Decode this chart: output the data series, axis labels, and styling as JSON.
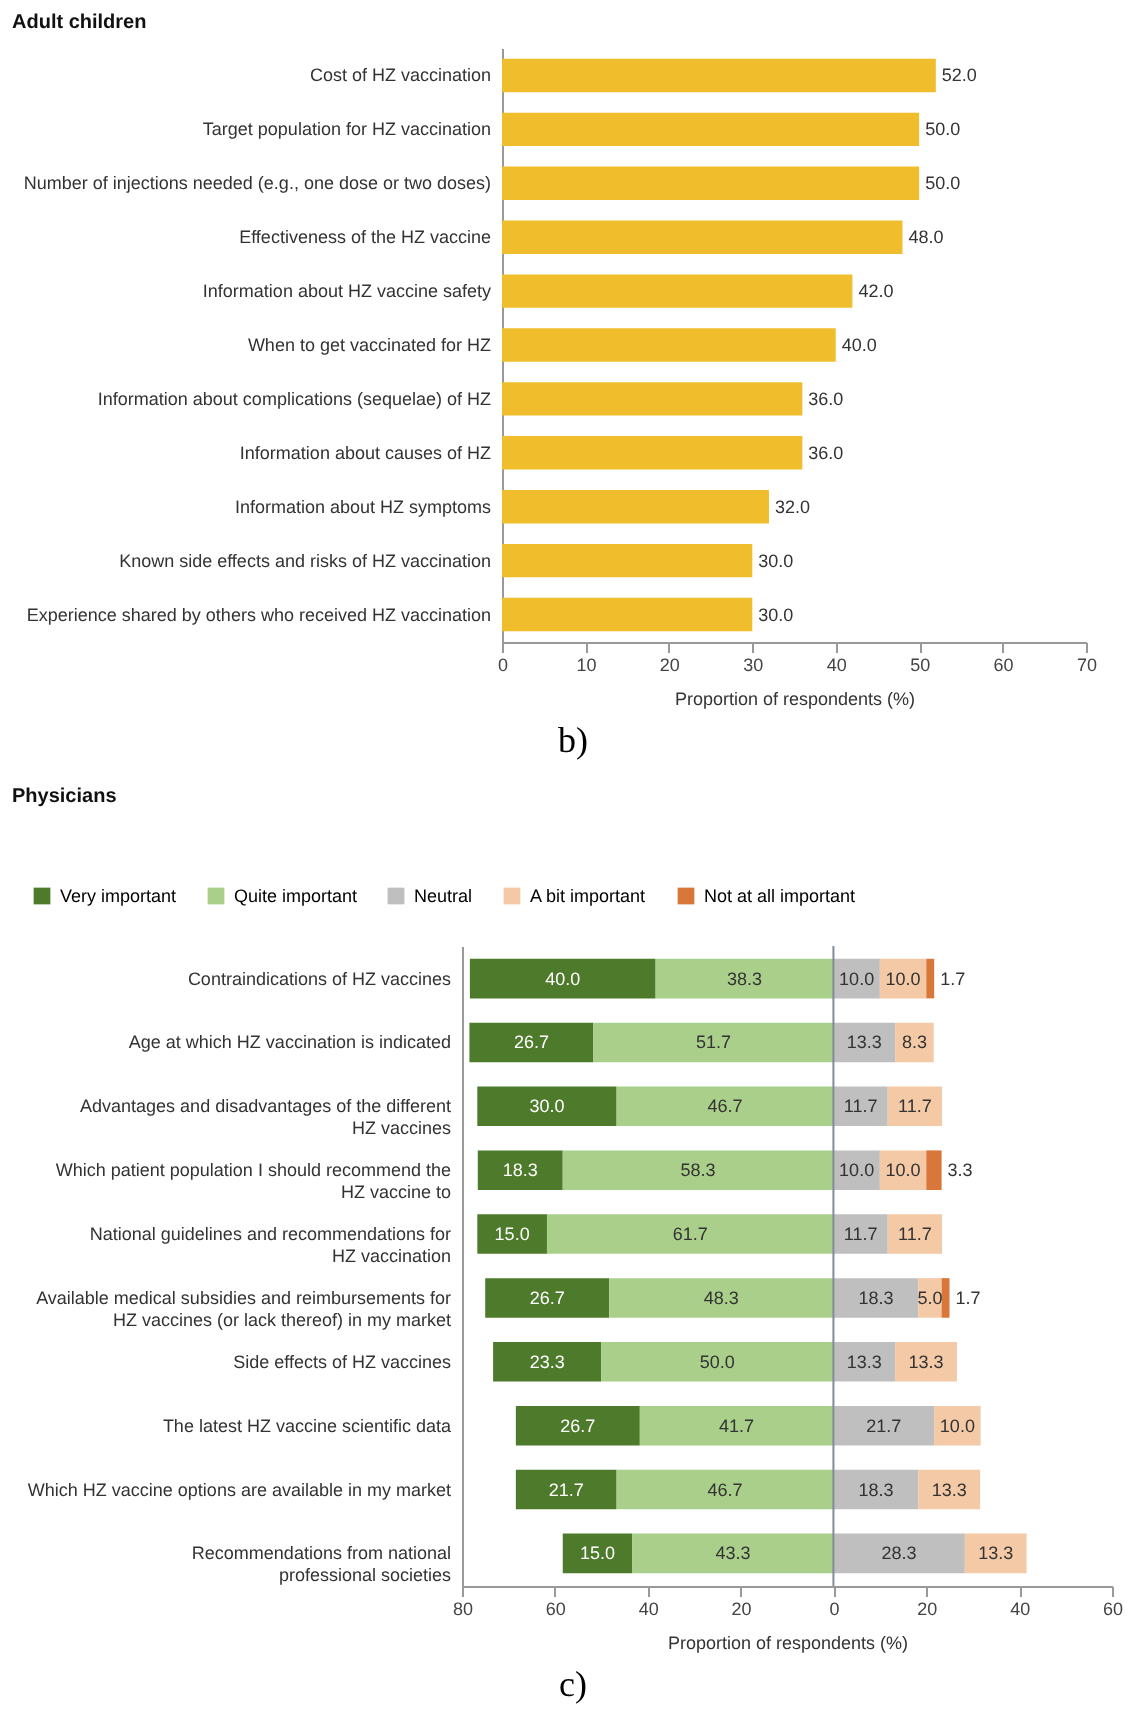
{
  "chart_data": [
    {
      "type": "bar",
      "orientation": "horizontal",
      "title": "Adult children",
      "xlabel": "Proportion of respondents (%)",
      "categories": [
        "Cost of HZ vaccination",
        "Target population for HZ vaccination",
        "Number of injections needed (e.g., one dose or two doses)",
        "Effectiveness of the HZ vaccine",
        "Information about HZ vaccine safety",
        "When to get vaccinated for HZ",
        "Information about complications (sequelae) of HZ",
        "Information about causes of HZ",
        "Information about HZ symptoms",
        "Known side effects and risks of HZ vaccination",
        "Experience shared by others who received HZ vaccination"
      ],
      "values": [
        52,
        50,
        50,
        48,
        42,
        40,
        36,
        36,
        32,
        30,
        30
      ],
      "value_labels": [
        "52.0",
        "50.0",
        "50.0",
        "48.0",
        "42.0",
        "40.0",
        "36.0",
        "36.0",
        "32.0",
        "30.0",
        "30.0"
      ],
      "color": "#f0be2c",
      "xlim": [
        0,
        70
      ],
      "xticks": [
        0,
        10,
        20,
        30,
        40,
        50,
        60,
        70
      ],
      "annotations": [
        "b)"
      ]
    },
    {
      "type": "bar",
      "orientation": "horizontal",
      "title": "Physicians",
      "xlabel": "Proportion of respondents (%)",
      "legend": "top",
      "categories": [
        "Contraindications of HZ vaccines",
        "Age at which HZ vaccination is indicated",
        "Advantages and disadvantages of the different\nHZ vaccines",
        "Which patient population I should recommend the\nHZ vaccine to",
        "National guidelines and recommendations for\nHZ vaccination",
        "Available medical subsidies and reimbursements for\nHZ vaccines (or lack thereof) in my market",
        "Side effects of HZ vaccines",
        "The latest HZ vaccine scientific data",
        "Which HZ vaccine options are available in my market",
        "Recommendations from national\nprofessional societies"
      ],
      "series": [
        {
          "name": "Very important",
          "color": "#4e7a2b",
          "values": [
            40.0,
            26.7,
            30.0,
            18.3,
            15.0,
            26.7,
            23.3,
            26.7,
            21.7,
            15.0
          ],
          "base": [
            -78.3,
            -78.4,
            -76.7,
            -76.6,
            -76.7,
            -75.0,
            -73.3,
            -68.4,
            -68.4,
            -58.3
          ],
          "value_labels": [
            "40.0",
            "26.7",
            "30.0",
            "18.3",
            "15.0",
            "26.7",
            "23.3",
            "26.7",
            "21.7",
            "15.0"
          ]
        },
        {
          "name": "Quite important",
          "color": "#a9cf8a",
          "values": [
            38.3,
            51.7,
            46.7,
            58.3,
            61.7,
            48.3,
            50.0,
            41.7,
            46.7,
            43.3
          ],
          "base": [
            -38.3,
            -51.7,
            -46.7,
            -58.3,
            -61.7,
            -48.3,
            -50.0,
            -41.7,
            -46.7,
            -43.3
          ],
          "value_labels": [
            "38.3",
            "51.7",
            "46.7",
            "58.3",
            "61.7",
            "48.3",
            "50.0",
            "41.7",
            "46.7",
            "43.3"
          ]
        },
        {
          "name": "Neutral",
          "color": "#bfbfbf",
          "values": [
            10.0,
            13.3,
            11.7,
            10.0,
            11.7,
            18.3,
            13.3,
            21.7,
            18.3,
            28.3
          ],
          "base": [
            0,
            0,
            0,
            0,
            0,
            0,
            0,
            0,
            0,
            0
          ],
          "value_labels": [
            "10.0",
            "13.3",
            "11.7",
            "10.0",
            "11.7",
            "18.3",
            "13.3",
            "21.7",
            "18.3",
            "28.3"
          ]
        },
        {
          "name": "A bit important",
          "color": "#f4c9a6",
          "values": [
            10.0,
            8.3,
            11.7,
            10.0,
            11.7,
            5.0,
            13.3,
            10.0,
            13.3,
            13.3
          ],
          "base": [
            10.0,
            13.3,
            11.7,
            10.0,
            11.7,
            18.3,
            13.3,
            21.7,
            18.3,
            28.3
          ],
          "value_labels": [
            "10.0",
            "8.3",
            "11.7",
            "10.0",
            "11.7",
            "5.0",
            "13.3",
            "10.0",
            "13.3",
            "13.3"
          ]
        },
        {
          "name": "Not at all important",
          "color": "#d9773a",
          "values": [
            1.7,
            null,
            null,
            3.3,
            null,
            1.7,
            null,
            null,
            null,
            null
          ],
          "base": [
            20.0,
            null,
            null,
            20.0,
            null,
            23.3,
            null,
            null,
            null,
            null
          ],
          "value_labels": [
            "1.7",
            null,
            null,
            "3.3",
            null,
            "1.7",
            null,
            null,
            null,
            null
          ]
        }
      ],
      "xlim": [
        -80,
        60
      ],
      "xticks": [
        {
          "value": -80,
          "label": "80"
        },
        {
          "value": -60,
          "label": "60"
        },
        {
          "value": -40,
          "label": "40"
        },
        {
          "value": -20,
          "label": "20"
        },
        0,
        20,
        40,
        60
      ],
      "ref_lines": [
        {
          "axis": "x",
          "value": 0,
          "color": "#7f8c9a"
        }
      ],
      "annotations": [
        "c)"
      ]
    }
  ]
}
